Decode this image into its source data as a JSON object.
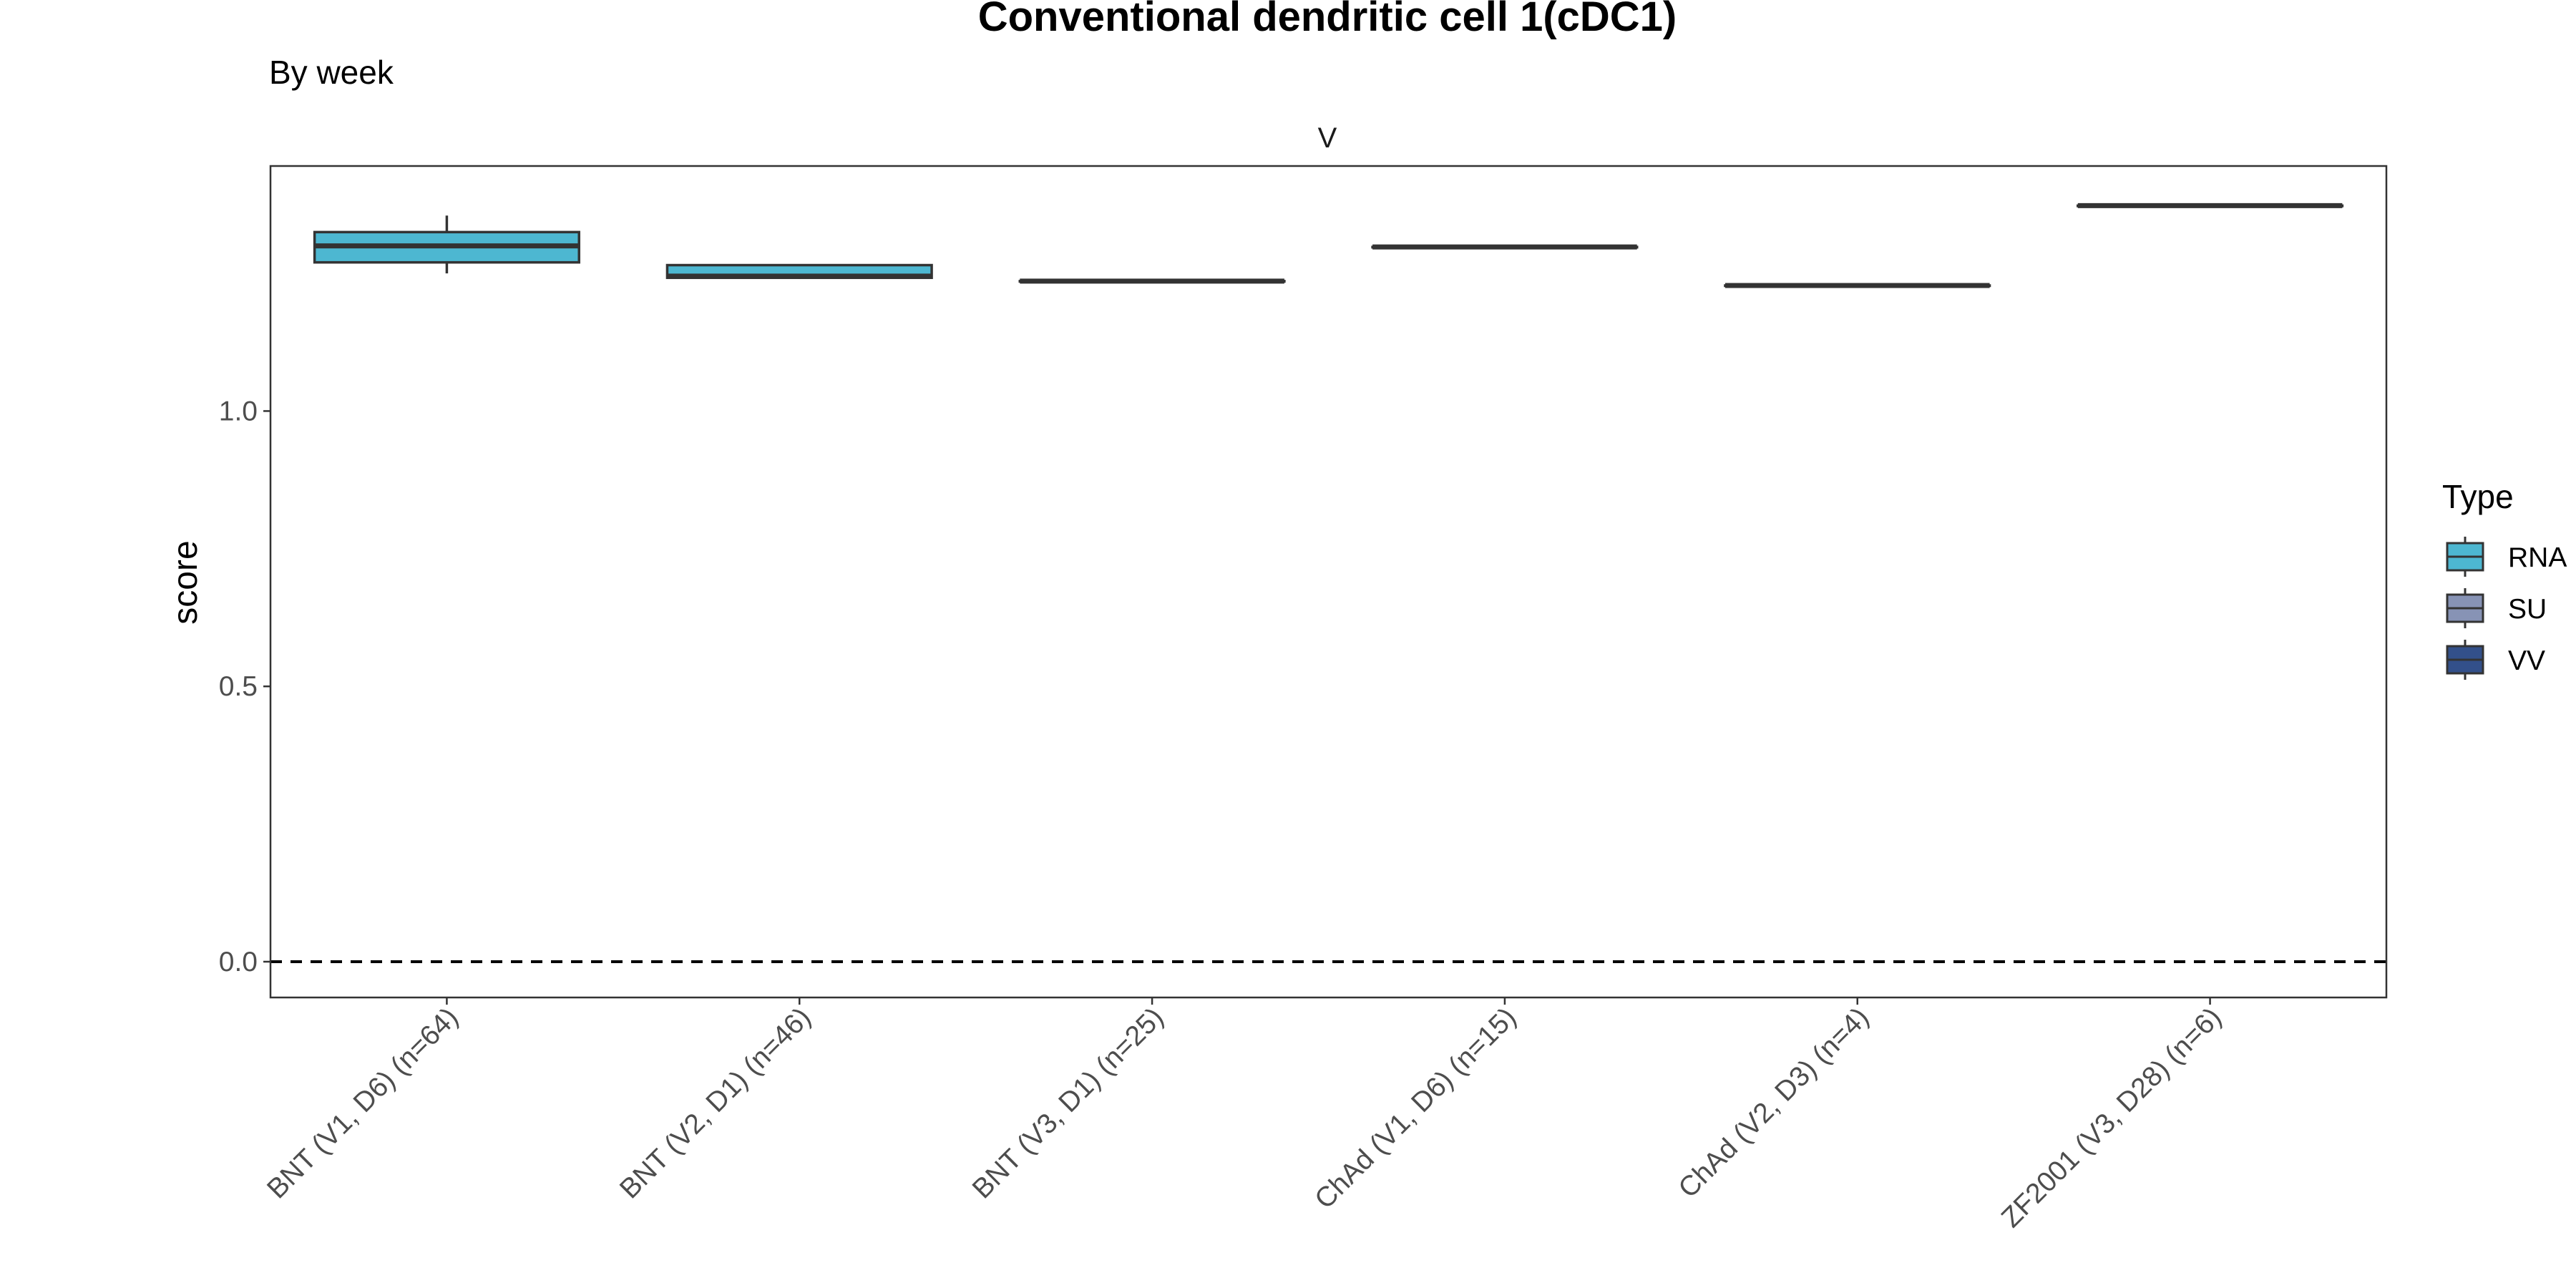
{
  "chart_data": {
    "type": "box",
    "title": "Conventional dendritic cell 1(cDC1)",
    "subtitle": "By week",
    "facet_label": "V",
    "xlabel": "",
    "ylabel": "score",
    "ylim": [
      -0.065,
      1.445
    ],
    "yticks": [
      0.0,
      0.5,
      1.0
    ],
    "ytick_labels": [
      "0.0",
      "0.5",
      "1.0"
    ],
    "reference_line": {
      "y": 0.0,
      "style": "dashed"
    },
    "categories": [
      "BNT (V1, D6) (n=64)",
      "BNT (V2, D1) (n=46)",
      "BNT (V3, D1) (n=25)",
      "ChAd (V1, D6) (n=15)",
      "ChAd (V2, D3) (n=4)",
      "ZF2001 (V3, D28) (n=6)"
    ],
    "boxes": [
      {
        "type": "RNA",
        "min": 1.25,
        "q1": 1.27,
        "median": 1.3,
        "q3": 1.325,
        "max": 1.355
      },
      {
        "type": "RNA",
        "min": 1.24,
        "q1": 1.242,
        "median": 1.245,
        "q3": 1.265,
        "max": 1.265
      },
      {
        "type": "RNA",
        "min": 1.236,
        "q1": 1.236,
        "median": 1.236,
        "q3": 1.236,
        "max": 1.236
      },
      {
        "type": "RNA",
        "min": 1.298,
        "q1": 1.298,
        "median": 1.298,
        "q3": 1.298,
        "max": 1.298
      },
      {
        "type": "RNA",
        "min": 1.228,
        "q1": 1.228,
        "median": 1.228,
        "q3": 1.228,
        "max": 1.228
      },
      {
        "type": "RNA",
        "min": 1.373,
        "q1": 1.373,
        "median": 1.373,
        "q3": 1.373,
        "max": 1.373
      }
    ],
    "legend": {
      "title": "Type",
      "position": "right",
      "items": [
        {
          "label": "RNA",
          "color": "#4db7d1"
        },
        {
          "label": "SU",
          "color": "#8793b5"
        },
        {
          "label": "VV",
          "color": "#33508a"
        }
      ]
    },
    "grid": false
  }
}
